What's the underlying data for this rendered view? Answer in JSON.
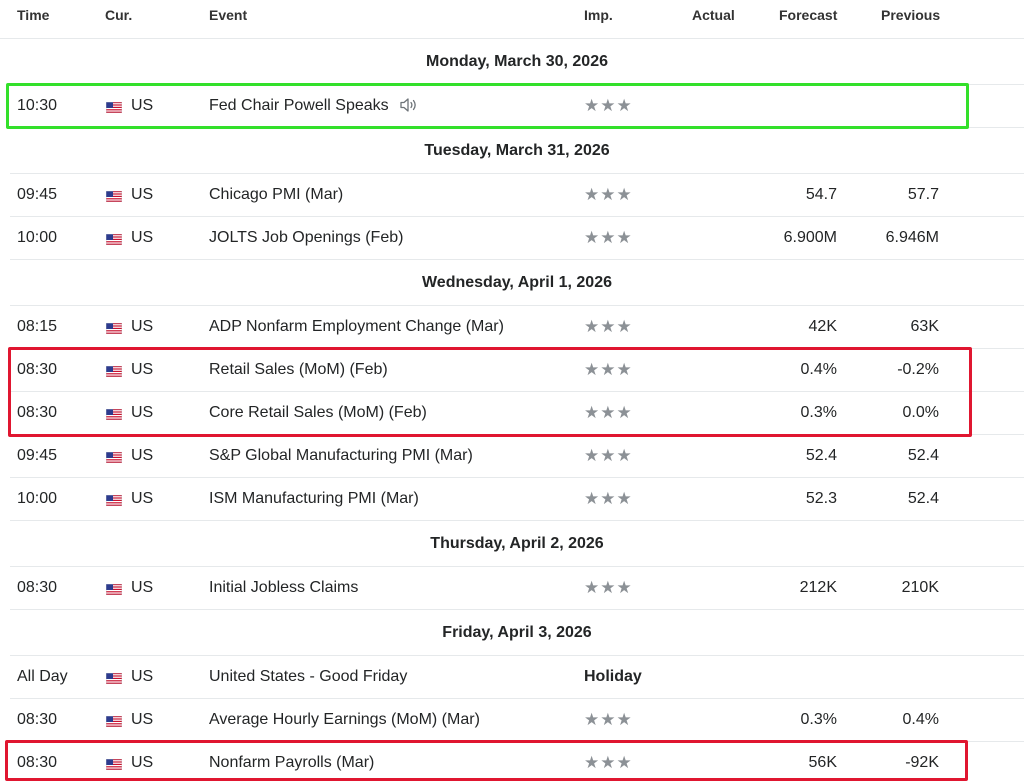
{
  "columns": {
    "time": "Time",
    "currency": "Cur.",
    "event": "Event",
    "importance": "Imp.",
    "actual": "Actual",
    "forecast": "Forecast",
    "previous": "Previous"
  },
  "importance_levels": {
    "low": 1,
    "medium": 2,
    "high": 3,
    "max": 3
  },
  "star_glyph": "★",
  "colors": {
    "highlight_green": "#33e02a",
    "highlight_red": "#e01630",
    "star": "#8c9196",
    "row_border": "#e6e9eb"
  },
  "days": [
    {
      "date": "Monday, March 30, 2026",
      "events": [
        {
          "time": "10:30",
          "currency": "US",
          "flag": "us-flag-icon",
          "event": "Fed Chair Powell Speaks",
          "has_speech_icon": true,
          "importance": 3,
          "actual": "",
          "forecast": "",
          "previous": "",
          "highlight": "green"
        }
      ]
    },
    {
      "date": "Tuesday, March 31, 2026",
      "events": [
        {
          "time": "09:45",
          "currency": "US",
          "flag": "us-flag-icon",
          "event": "Chicago PMI (Mar)",
          "importance": 3,
          "actual": "",
          "forecast": "54.7",
          "previous": "57.7"
        },
        {
          "time": "10:00",
          "currency": "US",
          "flag": "us-flag-icon",
          "event": "JOLTS Job Openings (Feb)",
          "importance": 3,
          "actual": "",
          "forecast": "6.900M",
          "previous": "6.946M"
        }
      ]
    },
    {
      "date": "Wednesday, April 1, 2026",
      "events": [
        {
          "time": "08:15",
          "currency": "US",
          "flag": "us-flag-icon",
          "event": "ADP Nonfarm Employment Change (Mar)",
          "importance": 3,
          "actual": "",
          "forecast": "42K",
          "previous": "63K"
        },
        {
          "time": "08:30",
          "currency": "US",
          "flag": "us-flag-icon",
          "event": "Retail Sales (MoM) (Feb)",
          "importance": 3,
          "actual": "",
          "forecast": "0.4%",
          "previous": "-0.2%",
          "highlight": "red-start"
        },
        {
          "time": "08:30",
          "currency": "US",
          "flag": "us-flag-icon",
          "event": "Core Retail Sales (MoM) (Feb)",
          "importance": 3,
          "actual": "",
          "forecast": "0.3%",
          "previous": "0.0%",
          "highlight": "red-end"
        },
        {
          "time": "09:45",
          "currency": "US",
          "flag": "us-flag-icon",
          "event": "S&P Global Manufacturing PMI (Mar)",
          "importance": 3,
          "actual": "",
          "forecast": "52.4",
          "previous": "52.4"
        },
        {
          "time": "10:00",
          "currency": "US",
          "flag": "us-flag-icon",
          "event": "ISM Manufacturing PMI (Mar)",
          "importance": 3,
          "actual": "",
          "forecast": "52.3",
          "previous": "52.4"
        }
      ]
    },
    {
      "date": "Thursday, April 2, 2026",
      "events": [
        {
          "time": "08:30",
          "currency": "US",
          "flag": "us-flag-icon",
          "event": "Initial Jobless Claims",
          "importance": 3,
          "actual": "",
          "forecast": "212K",
          "previous": "210K"
        }
      ]
    },
    {
      "date": "Friday, April 3, 2026",
      "events": [
        {
          "time": "All Day",
          "currency": "US",
          "flag": "us-flag-icon",
          "event": "United States - Good Friday",
          "importance_label": "Holiday",
          "actual": "",
          "forecast": "",
          "previous": ""
        },
        {
          "time": "08:30",
          "currency": "US",
          "flag": "us-flag-icon",
          "event": "Average Hourly Earnings (MoM) (Mar)",
          "importance": 3,
          "actual": "",
          "forecast": "0.3%",
          "previous": "0.4%"
        },
        {
          "time": "08:30",
          "currency": "US",
          "flag": "us-flag-icon",
          "event": "Nonfarm Payrolls (Mar)",
          "importance": 3,
          "actual": "",
          "forecast": "56K",
          "previous": "-92K",
          "highlight": "red-single"
        }
      ]
    }
  ]
}
